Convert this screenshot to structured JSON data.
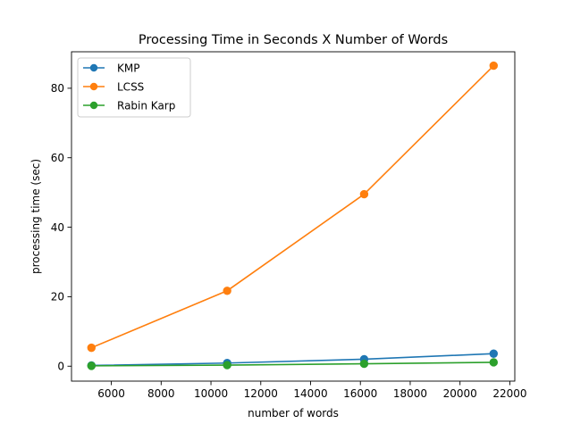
{
  "chart_data": {
    "type": "line",
    "title": "Processing Time in Seconds X Number of Words",
    "xlabel": "number of words",
    "ylabel": "processing time (sec)",
    "xlim": [
      4400,
      22200
    ],
    "ylim": [
      -4.3,
      90.5
    ],
    "x_ticks": [
      6000,
      8000,
      10000,
      12000,
      14000,
      16000,
      18000,
      20000,
      22000
    ],
    "y_ticks": [
      0,
      20,
      40,
      60,
      80
    ],
    "grid": false,
    "legend_position": "upper-left",
    "series": [
      {
        "name": "KMP",
        "color": "#1f77b4",
        "marker": "circle",
        "x": [
          5200,
          10650,
          16150,
          21350
        ],
        "y": [
          0.2,
          0.9,
          2.0,
          3.6
        ]
      },
      {
        "name": "LCSS",
        "color": "#ff7f0e",
        "marker": "circle",
        "x": [
          5200,
          10650,
          16150,
          21350
        ],
        "y": [
          5.3,
          21.7,
          49.5,
          86.5
        ]
      },
      {
        "name": "Rabin Karp",
        "color": "#2ca02c",
        "marker": "circle",
        "x": [
          5200,
          10650,
          16150,
          21350
        ],
        "y": [
          0.1,
          0.3,
          0.7,
          1.1
        ]
      }
    ]
  }
}
